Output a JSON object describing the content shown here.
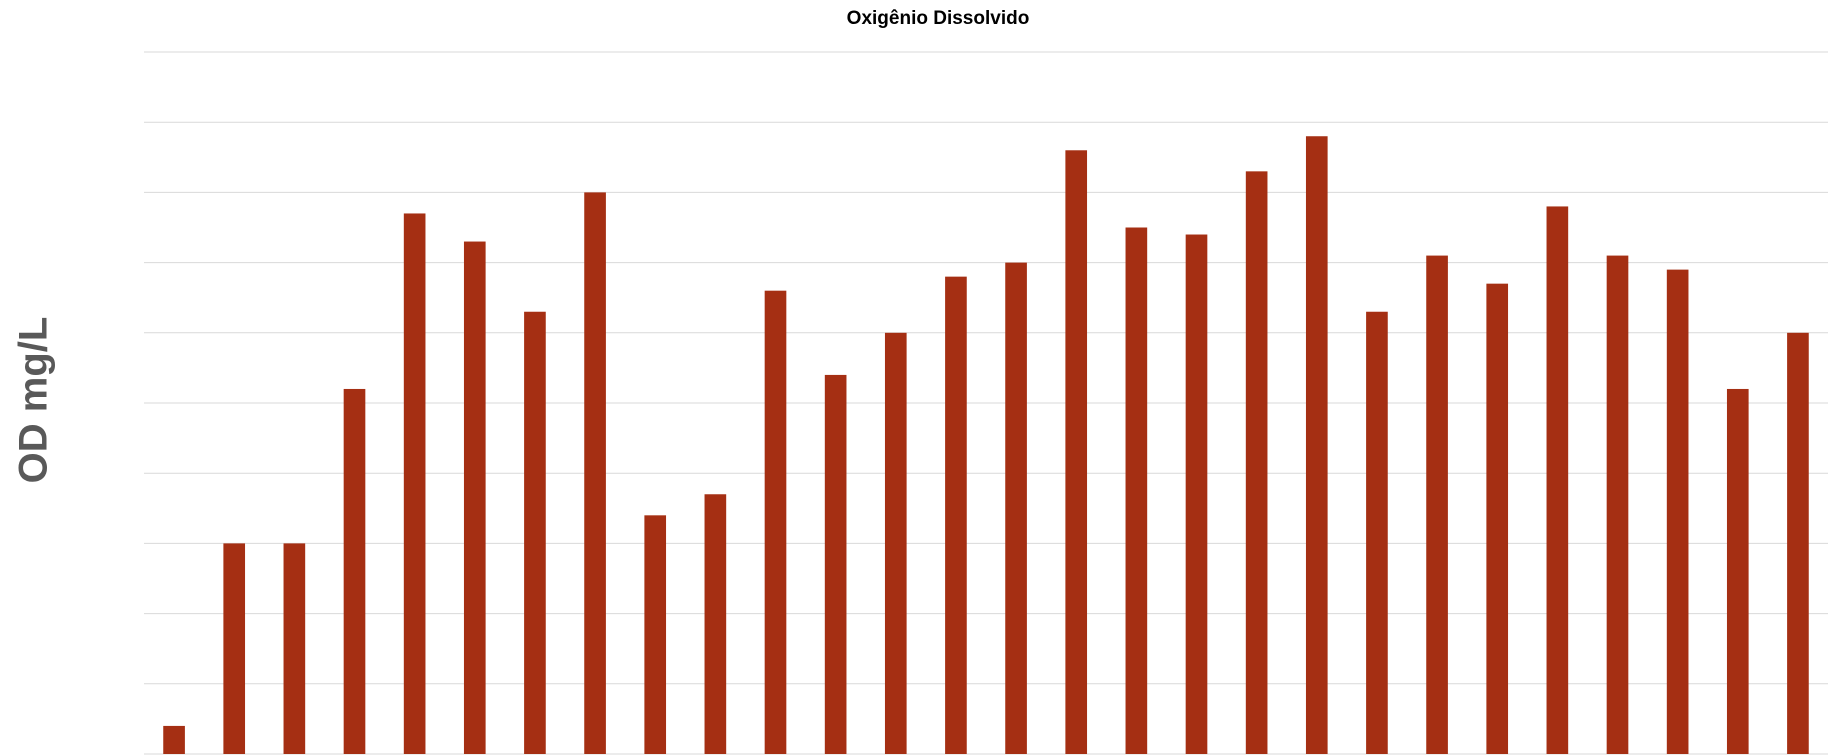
{
  "chart_data": {
    "type": "bar",
    "title": "Oxigênio Dissolvido",
    "y_label": "OD mg/L",
    "categories": [
      null,
      null,
      null,
      null,
      null,
      null,
      null,
      null,
      null,
      null,
      null,
      null,
      null,
      null,
      null,
      null,
      null,
      null,
      null,
      null,
      null,
      null,
      null,
      null,
      null,
      null,
      null,
      null
    ],
    "values": [
      0.4,
      3.0,
      3.0,
      5.2,
      7.7,
      7.3,
      6.3,
      8.0,
      3.4,
      3.7,
      6.6,
      5.4,
      6.0,
      6.8,
      7.0,
      8.6,
      7.5,
      7.4,
      8.3,
      8.8,
      6.3,
      7.1,
      6.7,
      7.8,
      7.1,
      6.9,
      5.2,
      6.0
    ],
    "color": "#a52f13",
    "ylim": [
      0,
      10
    ],
    "yticks": [
      0,
      1,
      2,
      3,
      4,
      5,
      6,
      7,
      8,
      9,
      10
    ],
    "grid": true
  }
}
